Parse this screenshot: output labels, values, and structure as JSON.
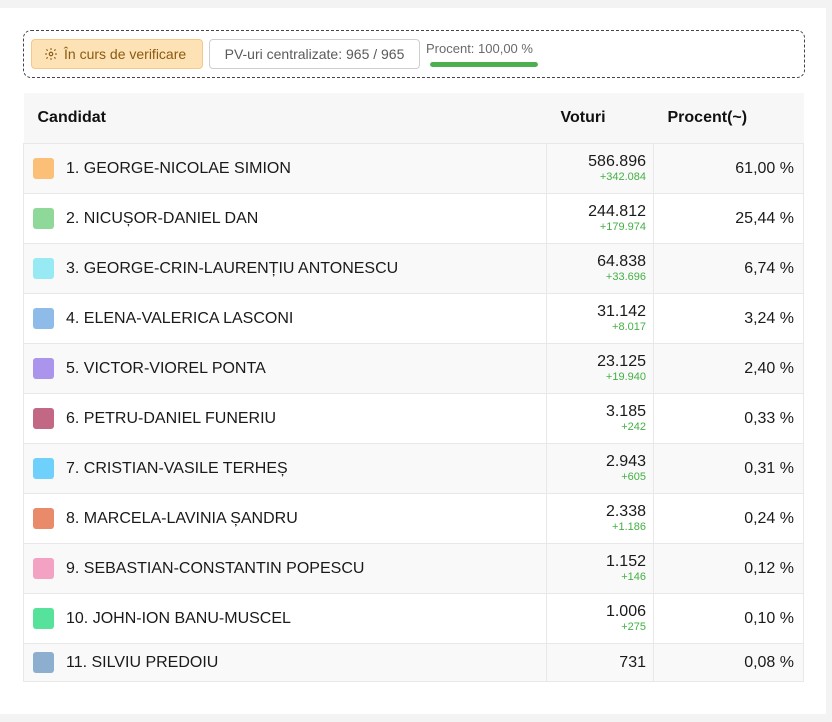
{
  "status": {
    "badge_label": "În curs de verificare",
    "pv_text": "PV-uri centralizate: 965 / 965",
    "percent_label": "Procent: 100,00 %",
    "progress": 1.0,
    "colors": {
      "badge_bg": "#fde2b5",
      "progress": "#4caf50"
    }
  },
  "table": {
    "headers": {
      "candidate": "Candidat",
      "votes": "Voturi",
      "percent": "Procent(~)"
    },
    "rows": [
      {
        "name": "1. GEORGE-NICOLAE SIMION",
        "votes": "586.896",
        "delta": "+342.084",
        "percent": "61,00 %",
        "color": "#fbbf77"
      },
      {
        "name": "2. NICUȘOR-DANIEL DAN",
        "votes": "244.812",
        "delta": "+179.974",
        "percent": "25,44 %",
        "color": "#8ed99a"
      },
      {
        "name": "3. GEORGE-CRIN-LAURENȚIU ANTONESCU",
        "votes": "64.838",
        "delta": "+33.696",
        "percent": "6,74 %",
        "color": "#97eaf3"
      },
      {
        "name": "4. ELENA-VALERICA LASCONI",
        "votes": "31.142",
        "delta": "+8.017",
        "percent": "3,24 %",
        "color": "#8fbbe8"
      },
      {
        "name": "5. VICTOR-VIOREL PONTA",
        "votes": "23.125",
        "delta": "+19.940",
        "percent": "2,40 %",
        "color": "#ab94ec"
      },
      {
        "name": "6. PETRU-DANIEL FUNERIU",
        "votes": "3.185",
        "delta": "+242",
        "percent": "0,33 %",
        "color": "#c26885"
      },
      {
        "name": "7. CRISTIAN-VASILE TERHEȘ",
        "votes": "2.943",
        "delta": "+605",
        "percent": "0,31 %",
        "color": "#6fd0fb"
      },
      {
        "name": "8. MARCELA-LAVINIA ȘANDRU",
        "votes": "2.338",
        "delta": "+1.186",
        "percent": "0,24 %",
        "color": "#e98a6a"
      },
      {
        "name": "9. SEBASTIAN-CONSTANTIN POPESCU",
        "votes": "1.152",
        "delta": "+146",
        "percent": "0,12 %",
        "color": "#f4a2c4"
      },
      {
        "name": "10. JOHN-ION BANU-MUSCEL",
        "votes": "1.006",
        "delta": "+275",
        "percent": "0,10 %",
        "color": "#56e29a"
      },
      {
        "name": "11. SILVIU PREDOIU",
        "votes": "731",
        "delta": "",
        "percent": "0,08 %",
        "color": "#8eaed0"
      }
    ]
  }
}
